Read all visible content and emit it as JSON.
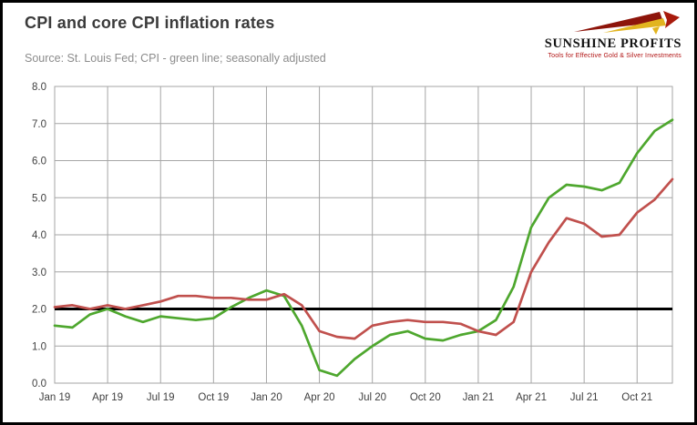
{
  "header": {
    "title": "CPI and core CPI inflation rates",
    "subtitle": "Source: St. Louis Fed; CPI - green line; seasonally adjusted"
  },
  "logo": {
    "name": "SUNSHINE PROFITS",
    "tagline": "Tools for Effective Gold & Silver Investments"
  },
  "chart_data": {
    "type": "line",
    "title": "CPI and core CPI inflation rates",
    "xlabel": "",
    "ylabel": "",
    "ylim": [
      0.0,
      8.0
    ],
    "grid": true,
    "legend_position": "none",
    "y_tick_values": [
      0.0,
      1.0,
      2.0,
      3.0,
      4.0,
      5.0,
      6.0,
      7.0,
      8.0
    ],
    "y_tick_labels": [
      "0.0",
      "1.0",
      "2.0",
      "3.0",
      "4.0",
      "5.0",
      "6.0",
      "7.0",
      "8.0"
    ],
    "x_tick_labels": [
      "Jan 19",
      "Apr 19",
      "Jul 19",
      "Oct 19",
      "Jan 20",
      "Apr 20",
      "Jul 20",
      "Oct 20",
      "Jan 21",
      "Apr 21",
      "Jul 21",
      "Oct 21"
    ],
    "x_tick_indices": [
      0,
      3,
      6,
      9,
      12,
      15,
      18,
      21,
      24,
      27,
      30,
      33
    ],
    "reference_line": {
      "value": 2.0,
      "color": "#000000",
      "width": 3
    },
    "grid_color": "#a6a6a6",
    "series": [
      {
        "name": "CPI",
        "color": "#4EA72E",
        "values": [
          1.55,
          1.5,
          1.85,
          2.0,
          1.8,
          1.65,
          1.8,
          1.75,
          1.7,
          1.75,
          2.05,
          2.3,
          2.5,
          2.35,
          1.55,
          0.35,
          0.2,
          0.65,
          1.0,
          1.3,
          1.4,
          1.2,
          1.15,
          1.3,
          1.4,
          1.7,
          2.6,
          4.2,
          5.0,
          5.35,
          5.3,
          5.2,
          5.4,
          6.2,
          6.8,
          7.1
        ]
      },
      {
        "name": "Core CPI",
        "color": "#C0504D",
        "values": [
          2.05,
          2.1,
          2.0,
          2.1,
          2.0,
          2.1,
          2.2,
          2.35,
          2.35,
          2.3,
          2.3,
          2.25,
          2.25,
          2.4,
          2.1,
          1.4,
          1.25,
          1.2,
          1.55,
          1.65,
          1.7,
          1.65,
          1.65,
          1.6,
          1.4,
          1.3,
          1.65,
          3.0,
          3.8,
          4.45,
          4.3,
          3.95,
          4.0,
          4.6,
          4.95,
          5.5
        ]
      }
    ]
  }
}
